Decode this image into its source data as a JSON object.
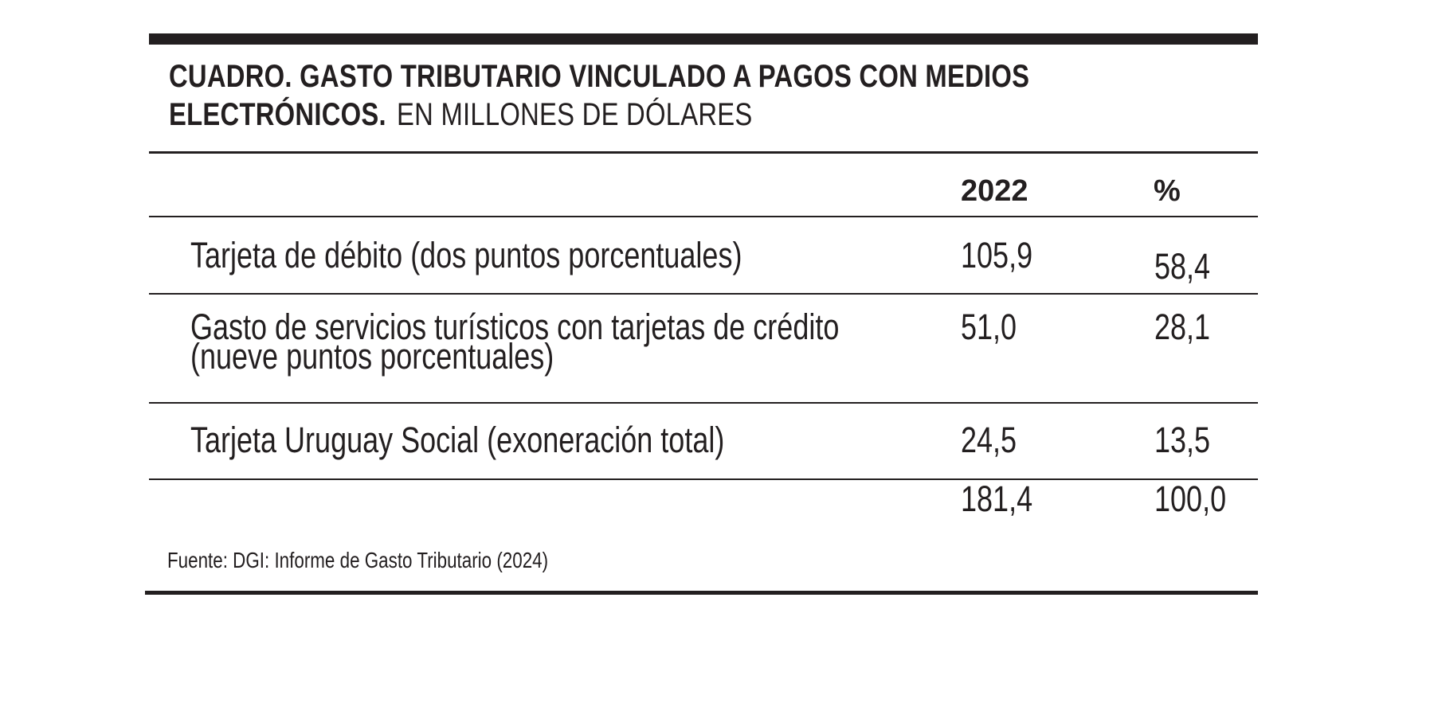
{
  "title": {
    "bold_line1": "CUADRO. GASTO TRIBUTARIO VINCULADO A PAGOS CON MEDIOS",
    "bold_line2": "ELECTRÓNICOS.",
    "unit": "EN MILLONES DE DÓLARES"
  },
  "columns": {
    "year": "2022",
    "percent": "%"
  },
  "rows": [
    {
      "label_lines": [
        "Tarjeta de  débito (dos puntos porcentuales)"
      ],
      "value": "105,9",
      "percent": "58,4"
    },
    {
      "label_lines": [
        "Gasto de servicios turísticos con tarjetas de crédito",
        "(nueve puntos porcentuales)"
      ],
      "value": "51,0",
      "percent": "28,1"
    },
    {
      "label_lines": [
        "Tarjeta Uruguay Social (exoneración total)"
      ],
      "value": "24,5",
      "percent": "13,5"
    }
  ],
  "total": {
    "value": "181,4",
    "percent": "100,0"
  },
  "source": "Fuente: DGI: Informe de Gasto Tributario (2024)"
}
